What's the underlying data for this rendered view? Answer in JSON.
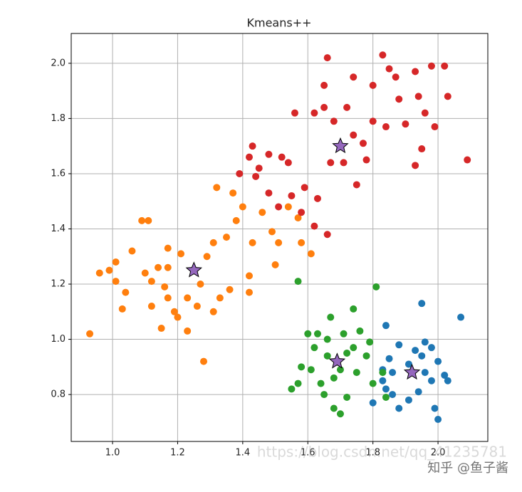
{
  "chart_data": {
    "type": "scatter",
    "title": "Kmeans++",
    "xlim": [
      0.873,
      2.153
    ],
    "ylim": [
      0.63,
      2.108
    ],
    "xticks": [
      {
        "value": 1,
        "label": "1.0"
      },
      {
        "value": 1.2,
        "label": "1.2"
      },
      {
        "value": 1.4,
        "label": "1.4"
      },
      {
        "value": 1.6,
        "label": "1.6"
      },
      {
        "value": 1.8,
        "label": "1.8"
      },
      {
        "value": 2,
        "label": "2.0"
      }
    ],
    "yticks": [
      {
        "value": 0.8,
        "label": "0.8"
      },
      {
        "value": 1,
        "label": "1.0"
      },
      {
        "value": 1.2,
        "label": "1.2"
      },
      {
        "value": 1.4,
        "label": "1.4"
      },
      {
        "value": 1.6,
        "label": "1.6"
      },
      {
        "value": 1.8,
        "label": "1.8"
      },
      {
        "value": 2,
        "label": "2.0"
      }
    ],
    "grid": true,
    "series": [
      {
        "color": "#1f77b4",
        "marker": "circle",
        "x": [
          1.95,
          2.07,
          1.84,
          1.8,
          2.0,
          1.99,
          1.88,
          1.91,
          1.94,
          1.96,
          1.98,
          2.02,
          2.03,
          1.96,
          1.98,
          1.95,
          1.88,
          1.85,
          1.83,
          1.86,
          1.83,
          1.91,
          1.93,
          1.84,
          1.86,
          2.0
        ],
        "values": [
          1.13,
          1.08,
          1.05,
          0.77,
          0.71,
          0.75,
          0.75,
          0.78,
          0.81,
          0.88,
          0.85,
          0.87,
          0.85,
          0.99,
          0.97,
          0.94,
          0.98,
          0.93,
          0.89,
          0.88,
          0.85,
          0.91,
          0.96,
          0.82,
          0.8,
          0.92
        ]
      },
      {
        "color": "#ff7f0e",
        "marker": "circle",
        "x": [
          0.93,
          0.96,
          0.99,
          1.01,
          1.01,
          1.03,
          1.04,
          1.06,
          1.09,
          1.11,
          1.1,
          1.12,
          1.14,
          1.16,
          1.17,
          1.17,
          1.15,
          1.19,
          1.21,
          1.23,
          1.23,
          1.27,
          1.28,
          1.29,
          1.31,
          1.31,
          1.32,
          1.33,
          1.35,
          1.36,
          1.37,
          1.38,
          1.4,
          1.42,
          1.42,
          1.43,
          1.46,
          1.49,
          1.5,
          1.51,
          1.54,
          1.58,
          1.61,
          1.57,
          1.17,
          1.2,
          1.12,
          1.26
        ],
        "values": [
          1.02,
          1.24,
          1.25,
          1.28,
          1.21,
          1.11,
          1.17,
          1.32,
          1.43,
          1.43,
          1.24,
          1.12,
          1.26,
          1.19,
          1.33,
          1.26,
          1.04,
          1.1,
          1.31,
          1.03,
          1.15,
          1.2,
          0.92,
          1.3,
          1.1,
          1.35,
          1.55,
          1.15,
          1.37,
          1.18,
          1.53,
          1.43,
          1.48,
          1.23,
          1.17,
          1.35,
          1.46,
          1.39,
          1.27,
          1.35,
          1.48,
          1.35,
          1.31,
          1.44,
          1.15,
          1.08,
          1.21,
          1.12
        ]
      },
      {
        "color": "#2ca02c",
        "marker": "circle",
        "x": [
          1.57,
          1.81,
          1.55,
          1.58,
          1.6,
          1.62,
          1.64,
          1.65,
          1.68,
          1.7,
          1.72,
          1.67,
          1.74,
          1.76,
          1.78,
          1.75,
          1.72,
          1.7,
          1.68,
          1.66,
          1.63,
          1.8,
          1.84,
          1.79,
          1.61,
          1.66,
          1.74,
          1.71,
          1.57,
          1.83
        ],
        "values": [
          1.21,
          1.19,
          0.82,
          0.9,
          1.02,
          0.97,
          0.84,
          0.8,
          0.75,
          0.73,
          0.79,
          1.08,
          1.11,
          1.03,
          0.94,
          0.88,
          0.95,
          0.89,
          0.86,
          0.94,
          1.02,
          0.84,
          0.79,
          0.99,
          0.89,
          1.0,
          0.97,
          1.02,
          0.84,
          0.88
        ]
      },
      {
        "color": "#d62728",
        "marker": "circle",
        "x": [
          1.66,
          1.83,
          2.02,
          1.98,
          2.09,
          2.03,
          1.56,
          1.43,
          1.42,
          1.39,
          1.44,
          1.48,
          1.52,
          1.54,
          1.58,
          1.62,
          1.66,
          1.63,
          1.67,
          1.71,
          1.75,
          1.78,
          1.74,
          1.8,
          1.85,
          1.87,
          1.93,
          1.94,
          1.96,
          1.93,
          1.95,
          1.9,
          1.84,
          1.8,
          1.74,
          1.68,
          1.65,
          1.62,
          1.65,
          1.72,
          1.77,
          1.88,
          1.99,
          1.48,
          1.51,
          1.55,
          1.59,
          1.45
        ],
        "values": [
          2.02,
          2.03,
          1.99,
          1.99,
          1.65,
          1.88,
          1.82,
          1.7,
          1.66,
          1.6,
          1.59,
          1.67,
          1.66,
          1.64,
          1.46,
          1.41,
          1.38,
          1.51,
          1.64,
          1.64,
          1.56,
          1.65,
          1.95,
          1.92,
          1.98,
          1.95,
          1.97,
          1.88,
          1.82,
          1.63,
          1.69,
          1.78,
          1.77,
          1.79,
          1.74,
          1.79,
          1.84,
          1.82,
          1.92,
          1.84,
          1.71,
          1.87,
          1.77,
          1.53,
          1.48,
          1.52,
          1.55,
          1.62
        ]
      },
      {
        "color": "#9467bd",
        "marker": "star",
        "x": [
          1.25,
          1.7,
          1.69,
          1.92
        ],
        "values": [
          1.25,
          1.7,
          0.92,
          0.88
        ]
      }
    ],
    "watermarks": [
      "https://blog.csdn.net/qq_41235781",
      "知乎 @鱼子酱"
    ]
  }
}
